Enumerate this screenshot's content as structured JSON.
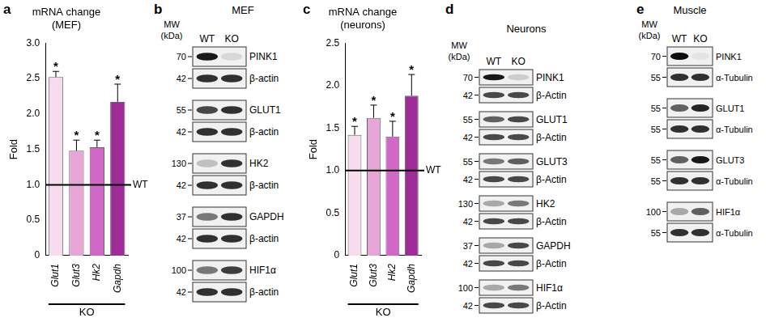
{
  "chart_data": [
    {
      "panel": "a",
      "type": "bar",
      "title": [
        "mRNA change",
        "(MEF)"
      ],
      "y_label": "Fold",
      "categories": [
        "Glut1",
        "Glut3",
        "Hk2",
        "Gapdh"
      ],
      "values": [
        2.52,
        1.48,
        1.53,
        2.17
      ],
      "errors": [
        0.08,
        0.15,
        0.1,
        0.25
      ],
      "colors": [
        "#f7dcef",
        "#e8a6d8",
        "#d167c6",
        "#9d2c97"
      ],
      "ylim": [
        0,
        3
      ],
      "yticks": [
        0,
        0.5,
        {
          "value": 1,
          "label": "1.0"
        },
        1.5,
        {
          "value": 2,
          "label": "2.0"
        },
        2.5,
        {
          "value": 3,
          "label": "3.0"
        }
      ],
      "grid": false,
      "significance": [
        "*",
        "*",
        "*",
        "*"
      ],
      "reference_line": {
        "value": 1,
        "label": "WT"
      },
      "group_label": "KO"
    },
    {
      "panel": "c",
      "type": "bar",
      "title": [
        "mRNA change",
        "(neurons)"
      ],
      "y_label": "Fold",
      "categories": [
        "Glut1",
        "Glut3",
        "Hk2",
        "Gapdh"
      ],
      "values": [
        1.42,
        1.62,
        1.4,
        1.88
      ],
      "errors": [
        0.1,
        0.15,
        0.18,
        0.25
      ],
      "colors": [
        "#f7dcef",
        "#e8a6d8",
        "#d167c6",
        "#9d2c97"
      ],
      "ylim": [
        0,
        2.5
      ],
      "yticks": [
        0,
        0.5,
        {
          "value": 1,
          "label": "1.0"
        },
        1.5,
        {
          "value": 2,
          "label": "2.0"
        },
        2.5
      ],
      "grid": false,
      "significance": [
        "*",
        "*",
        "*",
        "*"
      ],
      "reference_line": {
        "value": 1,
        "label": "WT"
      },
      "group_label": "KO"
    }
  ],
  "blots": [
    {
      "panel": "b",
      "title": "MEF",
      "mw_label": [
        "MW",
        "(kDa)"
      ],
      "lanes": [
        "WT",
        "KO"
      ],
      "groups": [
        [
          {
            "mw": 70,
            "label": "PINK1",
            "intensity": [
              0.9,
              0.1
            ]
          },
          {
            "mw": 42,
            "label": "β-actin",
            "intensity": [
              0.8,
              0.8
            ]
          }
        ],
        [
          {
            "mw": 55,
            "label": "GLUT1",
            "intensity": [
              0.7,
              0.8
            ]
          },
          {
            "mw": 42,
            "label": "β-actin",
            "intensity": [
              0.8,
              0.8
            ]
          }
        ],
        [
          {
            "mw": 130,
            "label": "HK2",
            "intensity": [
              0.2,
              0.8
            ]
          },
          {
            "mw": 42,
            "label": "β-actin",
            "intensity": [
              0.8,
              0.8
            ]
          }
        ],
        [
          {
            "mw": 37,
            "label": "GAPDH",
            "intensity": [
              0.5,
              0.8
            ]
          },
          {
            "mw": 42,
            "label": "β-actin",
            "intensity": [
              0.8,
              0.8
            ]
          }
        ],
        [
          {
            "mw": 100,
            "label": "HIF1α",
            "intensity": [
              0.5,
              0.75
            ]
          },
          {
            "mw": 42,
            "label": "β-actin",
            "intensity": [
              0.8,
              0.8
            ]
          }
        ]
      ]
    },
    {
      "panel": "d",
      "title": "Neurons",
      "mw_label": [
        "MW",
        "(kDa)"
      ],
      "lanes": [
        "WT",
        "KO"
      ],
      "groups": [
        [
          {
            "mw": 70,
            "label": "PINK1",
            "intensity": [
              0.9,
              0.15
            ]
          },
          {
            "mw": 42,
            "label": "β-Actin",
            "intensity": [
              0.7,
              0.7
            ]
          }
        ],
        [
          {
            "mw": 55,
            "label": "GLUT1",
            "intensity": [
              0.6,
              0.7
            ]
          },
          {
            "mw": 42,
            "label": "β-Actin",
            "intensity": [
              0.7,
              0.7
            ]
          }
        ],
        [
          {
            "mw": 55,
            "label": "GLUT3",
            "intensity": [
              0.5,
              0.6
            ]
          },
          {
            "mw": 42,
            "label": "β-Actin",
            "intensity": [
              0.7,
              0.7
            ]
          }
        ],
        [
          {
            "mw": 130,
            "label": "HK2",
            "intensity": [
              0.3,
              0.5
            ]
          },
          {
            "mw": 42,
            "label": "β-Actin",
            "intensity": [
              0.7,
              0.7
            ]
          }
        ],
        [
          {
            "mw": 37,
            "label": "GAPDH",
            "intensity": [
              0.3,
              0.7
            ]
          },
          {
            "mw": 42,
            "label": "β-Actin",
            "intensity": [
              0.7,
              0.7
            ]
          }
        ],
        [
          {
            "mw": 100,
            "label": "HIF1α",
            "intensity": [
              0.3,
              0.5
            ]
          },
          {
            "mw": 42,
            "label": "β-Actin",
            "intensity": [
              0.7,
              0.7
            ]
          }
        ]
      ]
    },
    {
      "panel": "e",
      "title": "Muscle",
      "mw_label": [
        "MW",
        "(kDa)"
      ],
      "lanes": [
        "WT",
        "KO"
      ],
      "groups": [
        [
          {
            "mw": 70,
            "label": "PINK1",
            "intensity": [
              0.95,
              0.05
            ]
          },
          {
            "mw": 55,
            "label": "α-Tubulin",
            "intensity": [
              0.8,
              0.8
            ]
          }
        ],
        [
          {
            "mw": 55,
            "label": "GLUT1",
            "intensity": [
              0.6,
              0.85
            ]
          },
          {
            "mw": 55,
            "label": "α-Tubulin",
            "intensity": [
              0.8,
              0.8
            ]
          }
        ],
        [
          {
            "mw": 55,
            "label": "GLUT3",
            "intensity": [
              0.6,
              0.9
            ]
          },
          {
            "mw": 55,
            "label": "α-Tubulin",
            "intensity": [
              0.8,
              0.8
            ]
          }
        ],
        [
          {
            "mw": 100,
            "label": "HIF1α",
            "intensity": [
              0.3,
              0.6
            ]
          },
          {
            "mw": 55,
            "label": "α-Tubulin",
            "intensity": [
              0.8,
              0.8
            ]
          }
        ]
      ]
    }
  ]
}
